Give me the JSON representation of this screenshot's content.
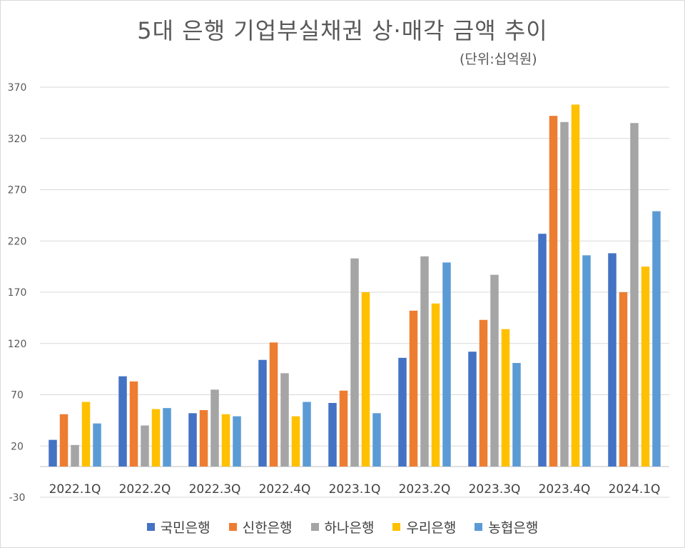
{
  "chart_data": {
    "type": "bar",
    "title": "5대 은행 기업부실채권 상·매각 금액 추이",
    "subtitle": "(단위:십억원)",
    "categories": [
      "2022.1Q",
      "2022.2Q",
      "2022.3Q",
      "2022.4Q",
      "2023.1Q",
      "2023.2Q",
      "2023.3Q",
      "2023.4Q",
      "2024.1Q"
    ],
    "series": [
      {
        "name": "국민은행",
        "color": "#4472C4",
        "values": [
          26,
          88,
          52,
          104,
          62,
          106,
          112,
          227,
          208
        ]
      },
      {
        "name": "신한은행",
        "color": "#ED7D31",
        "values": [
          51,
          83,
          55,
          121,
          74,
          152,
          143,
          342,
          170
        ]
      },
      {
        "name": "하나은행",
        "color": "#A5A5A5",
        "values": [
          21,
          40,
          75,
          91,
          203,
          205,
          187,
          336,
          335
        ]
      },
      {
        "name": "우리은행",
        "color": "#FFC000",
        "values": [
          63,
          56,
          51,
          49,
          170,
          159,
          134,
          353,
          195
        ]
      },
      {
        "name": "농협은행",
        "color": "#5B9BD5",
        "values": [
          42,
          57,
          49,
          63,
          52,
          199,
          101,
          206,
          249
        ]
      }
    ],
    "yticks": [
      -30,
      20,
      70,
      120,
      170,
      220,
      270,
      320,
      370
    ],
    "ylim": [
      -30,
      370
    ],
    "grid": true,
    "legend": "bottom"
  }
}
